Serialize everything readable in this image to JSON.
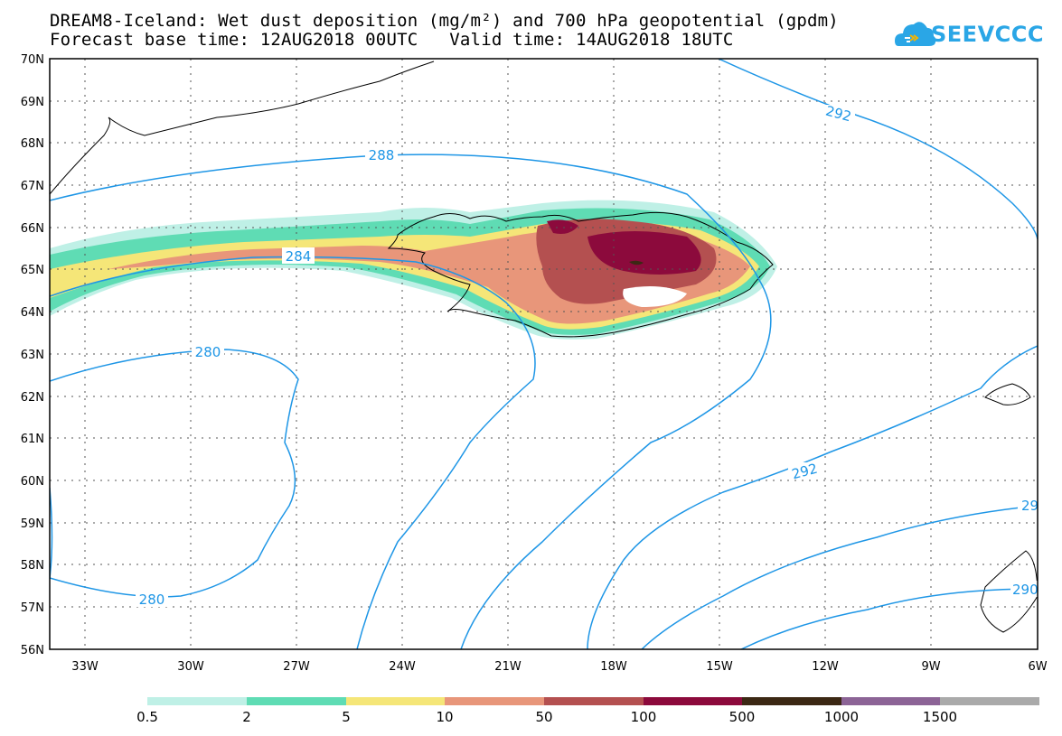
{
  "title": {
    "line1": "DREAM8-Iceland: Wet dust deposition (mg/m²) and 700 hPa geopotential (gpdm)",
    "line2": "Forecast base time: 12AUG2018 00UTC   Valid time: 14AUG2018 18UTC"
  },
  "logo": {
    "text": "SEEVCCC",
    "color": "#2aa6e6"
  },
  "map": {
    "lat_labels": [
      "70N",
      "69N",
      "68N",
      "67N",
      "66N",
      "65N",
      "64N",
      "63N",
      "62N",
      "61N",
      "60N",
      "59N",
      "58N",
      "57N",
      "56N"
    ],
    "lon_labels": [
      "33W",
      "30W",
      "27W",
      "24W",
      "21W",
      "18W",
      "15W",
      "12W",
      "9W",
      "6W"
    ],
    "lat_range": [
      56,
      70
    ],
    "lon_range": [
      -34,
      -6
    ],
    "contour_color": "#1e96e6",
    "contour_labels": [
      "288",
      "284",
      "280",
      "280",
      "292",
      "292",
      "29",
      "290"
    ]
  },
  "legend": {
    "colors": [
      "#bff0e6",
      "#5fdcb4",
      "#f5e678",
      "#e8967a",
      "#b45050",
      "#8c0a3c",
      "#3c2814",
      "#8c6496",
      "#aaaaaa"
    ],
    "labels": [
      "0.5",
      "2",
      "5",
      "10",
      "50",
      "100",
      "500",
      "1000",
      "1500"
    ]
  }
}
